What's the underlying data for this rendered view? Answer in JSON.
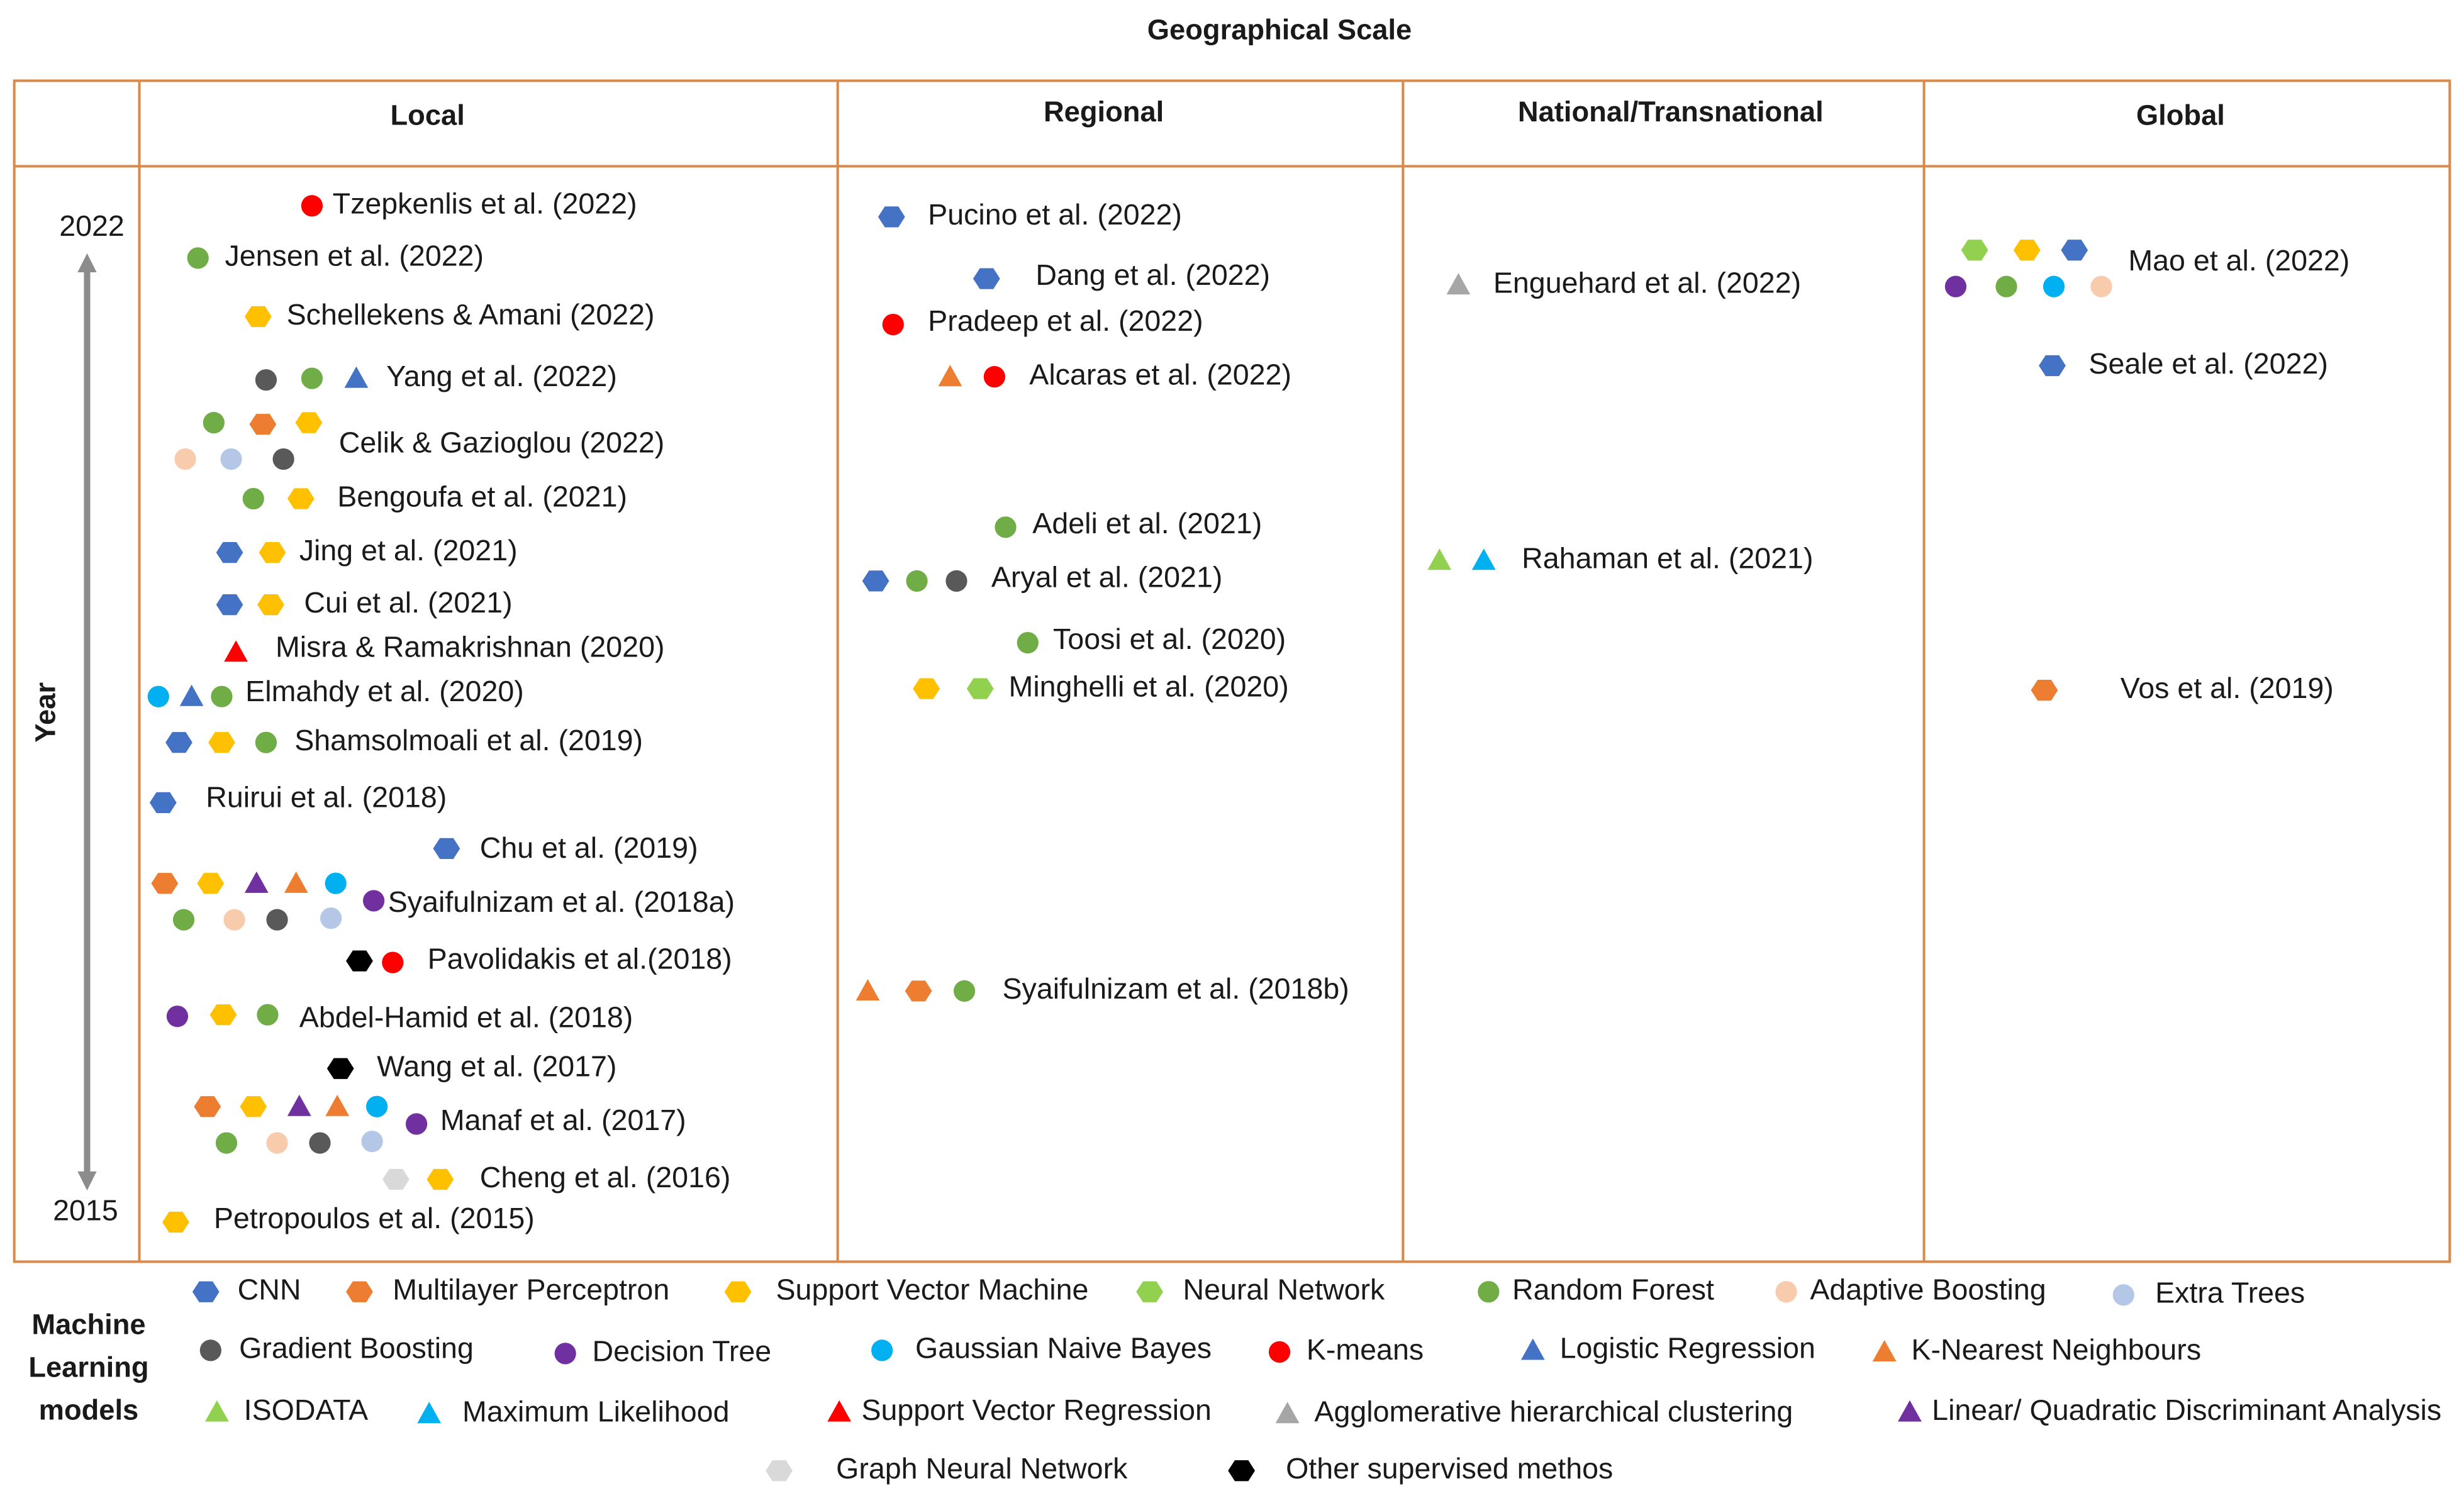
{
  "title": "Geographical Scale",
  "columns": [
    "Local",
    "Regional",
    "National/Transnational",
    "Global"
  ],
  "axis": {
    "label": "Year",
    "start": "2022",
    "end": "2015"
  },
  "entries": {
    "local": [
      "Tzepkenlis  et al. (2022)",
      "Jensen et al. (2022)",
      "Schellekens & Amani (2022)",
      "Yang et al. (2022)",
      "Celik & Gazioglou (2022)",
      "Bengoufa et al. (2021)",
      "Jing et al. (2021)",
      "Cui et al. (2021)",
      "Misra &  Ramakrishnan (2020)",
      "Elmahdy et al. (2020)",
      "Shamsolmoali  et al. (2019)",
      "Ruirui et al. (2018)",
      "Chu et al. (2019)",
      "Syaifulnizam et al. (2018a)",
      "Pavolidakis et al.(2018)",
      "Abdel-Hamid et al. (2018)",
      "Wang et al. (2017)",
      "Manaf et al. (2017)",
      "Cheng et al. (2016)",
      "Petropoulos et al. (2015)"
    ],
    "regional": [
      "Pucino et al. (2022)",
      "Dang et al. (2022)",
      "Pradeep et al. (2022)",
      "Alcaras et al. (2022)",
      "Adeli et al. (2021)",
      "Aryal et al. (2021)",
      "Toosi et al. (2020)",
      "Minghelli et al. (2020)",
      "Syaifulnizam et al. (2018b)"
    ],
    "national": [
      "Enguehard et al. (2022)",
      "Rahaman et al. (2021)"
    ],
    "global": [
      "Mao et al. (2022)",
      "Seale et al. (2022)",
      "Vos et al. (2019)"
    ]
  },
  "legend": {
    "title": [
      "Machine",
      "Learning",
      "models"
    ],
    "items": [
      "CNN",
      "Multilayer Perceptron",
      "Support Vector Machine",
      "Neural Network",
      "Random Forest",
      "Adaptive Boosting",
      "Extra Trees",
      "Gradient Boosting",
      "Decision Tree",
      "Gaussian Naive Bayes",
      "K-means",
      "Logistic Regression",
      "K-Nearest Neighbours",
      "ISODATA",
      "Maximum Likelihood",
      "Support Vector Regression",
      "Agglomerative hierarchical clustering",
      "Linear/ Quadratic Discriminant Analysis",
      "Graph Neural Network",
      "Other supervised methos"
    ]
  }
}
